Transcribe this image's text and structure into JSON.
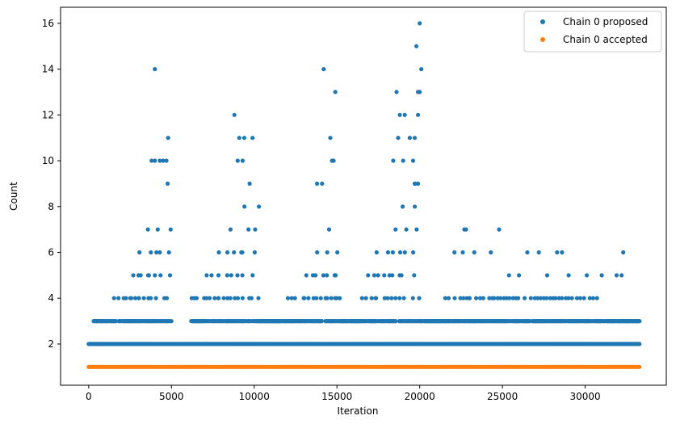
{
  "chart_data": {
    "type": "scatter",
    "title": "",
    "xlabel": "Iteration",
    "ylabel": "Count",
    "xlim": [
      -1700,
      34900
    ],
    "ylim": [
      0.2,
      16.7
    ],
    "xticks": [
      0,
      5000,
      10000,
      15000,
      20000,
      25000,
      30000
    ],
    "yticks": [
      2,
      4,
      6,
      8,
      10,
      12,
      14,
      16
    ],
    "grid": false,
    "legend": "top-right",
    "iterations": 33300,
    "series": [
      {
        "name": "Chain 0 proposed",
        "color": "#1f77b4",
        "marker": "circle",
        "baseline_values": [
          2
        ],
        "base_bands": [
          [
            0,
            33300,
            2
          ]
        ],
        "sparse_bands": [
          [
            300,
            1500,
            3,
            4
          ],
          [
            1500,
            2500,
            4,
            3
          ],
          [
            2500,
            3000,
            5,
            3
          ],
          [
            3000,
            3500,
            6,
            3
          ],
          [
            3500,
            4100,
            7,
            3
          ],
          [
            4100,
            4700,
            8,
            2
          ],
          [
            4700,
            5000,
            9,
            2
          ],
          [
            5000,
            6200,
            2,
            0
          ],
          [
            6200,
            7000,
            4,
            5
          ],
          [
            7000,
            7800,
            5,
            3
          ],
          [
            7800,
            8500,
            6,
            3
          ],
          [
            8500,
            9200,
            7,
            3
          ],
          [
            9200,
            9700,
            8,
            2
          ],
          [
            9700,
            10200,
            9,
            2
          ],
          [
            10200,
            12000,
            3,
            6
          ],
          [
            12000,
            13000,
            4,
            4
          ],
          [
            13000,
            13700,
            5,
            3
          ],
          [
            13700,
            14300,
            6,
            3
          ],
          [
            14300,
            14900,
            7,
            3
          ],
          [
            14900,
            15300,
            5,
            3
          ],
          [
            15300,
            16500,
            3,
            6
          ],
          [
            16500,
            17300,
            5,
            4
          ],
          [
            17300,
            18200,
            6,
            3
          ],
          [
            18200,
            18900,
            7,
            3
          ],
          [
            18900,
            19500,
            8,
            2
          ],
          [
            19500,
            20100,
            9,
            2
          ],
          [
            20100,
            21500,
            3,
            5
          ],
          [
            21500,
            23000,
            4,
            4
          ],
          [
            23000,
            25200,
            4,
            4
          ],
          [
            25200,
            28000,
            4,
            4
          ],
          [
            28000,
            30800,
            4,
            4
          ],
          [
            30800,
            33300,
            3,
            5
          ]
        ],
        "outliers": [
          [
            4000,
            14
          ],
          [
            4000,
            10
          ],
          [
            4300,
            10
          ],
          [
            4500,
            10
          ],
          [
            4700,
            10
          ],
          [
            4800,
            11
          ],
          [
            3800,
            10
          ],
          [
            8800,
            12
          ],
          [
            9100,
            11
          ],
          [
            9400,
            11
          ],
          [
            9900,
            11
          ],
          [
            9000,
            10
          ],
          [
            9300,
            10
          ],
          [
            14200,
            14
          ],
          [
            14600,
            11
          ],
          [
            14700,
            10
          ],
          [
            14800,
            10
          ],
          [
            14900,
            13
          ],
          [
            13800,
            9
          ],
          [
            14100,
            9
          ],
          [
            19800,
            15
          ],
          [
            20000,
            16
          ],
          [
            20100,
            14
          ],
          [
            19900,
            13
          ],
          [
            20000,
            13
          ],
          [
            18600,
            13
          ],
          [
            18800,
            12
          ],
          [
            19100,
            12
          ],
          [
            18700,
            11
          ],
          [
            19400,
            11
          ],
          [
            19700,
            11
          ],
          [
            19900,
            12
          ],
          [
            18400,
            10
          ],
          [
            19000,
            10
          ],
          [
            19600,
            10
          ],
          [
            19700,
            9
          ],
          [
            19900,
            9
          ],
          [
            22700,
            7
          ],
          [
            22800,
            7
          ],
          [
            24800,
            7
          ],
          [
            22100,
            6
          ],
          [
            22600,
            6
          ],
          [
            23300,
            6
          ],
          [
            24300,
            6
          ],
          [
            26000,
            5
          ],
          [
            26500,
            6
          ],
          [
            27200,
            6
          ],
          [
            28300,
            6
          ],
          [
            28600,
            6
          ],
          [
            29000,
            5
          ],
          [
            30100,
            5
          ],
          [
            31000,
            5
          ],
          [
            31900,
            5
          ],
          [
            32300,
            6
          ],
          [
            32200,
            5
          ],
          [
            27700,
            5
          ],
          [
            25400,
            5
          ]
        ]
      },
      {
        "name": "Chain 0 accepted",
        "color": "#ff7f0e",
        "marker": "circle",
        "baseline_values": [
          1
        ],
        "base_bands": [
          [
            0,
            33300,
            1
          ]
        ]
      }
    ]
  }
}
